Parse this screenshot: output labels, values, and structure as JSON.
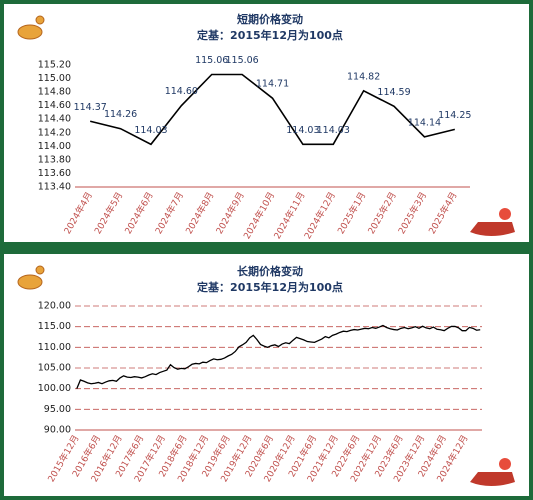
{
  "chart_data": [
    {
      "type": "line",
      "title": "短期价格变动",
      "subtitle": "定基：2015年12月为100点",
      "categories": [
        "2024年4月",
        "2024年5月",
        "2024年6月",
        "2024年7月",
        "2024年8月",
        "2024年9月",
        "2024年10月",
        "2024年11月",
        "2024年12月",
        "2025年1月",
        "2025年2月",
        "2025年3月",
        "2025年4月"
      ],
      "values": [
        114.37,
        114.26,
        114.03,
        114.6,
        115.06,
        115.06,
        114.71,
        114.03,
        114.03,
        114.82,
        114.59,
        114.14,
        114.25
      ],
      "value_labels": [
        "114.37",
        "114.26",
        "114.03",
        "114.60",
        "115.06",
        "115.06",
        "114.71",
        "114.03",
        "114.03",
        "114.82",
        "114.59",
        "114.14",
        "114.25"
      ],
      "color": "#000000",
      "ylim": [
        113.4,
        115.2
      ],
      "yticks": [
        {
          "value": 113.4,
          "label": "113.40"
        },
        {
          "value": 113.6,
          "label": "113.60"
        },
        {
          "value": 113.8,
          "label": "113.80"
        },
        {
          "value": 114,
          "label": "114.00"
        },
        {
          "value": 114.2,
          "label": "114.20"
        },
        {
          "value": 114.4,
          "label": "114.40"
        },
        {
          "value": 114.6,
          "label": "114.60"
        },
        {
          "value": 114.8,
          "label": "114.80"
        },
        {
          "value": 115,
          "label": "115.00"
        },
        {
          "value": 115.2,
          "label": "115.20"
        }
      ],
      "grid": false
    },
    {
      "type": "line",
      "title": "长期价格变动",
      "subtitle": "定基：2015年12月为100点",
      "categories": [
        "2015年12月",
        null,
        null,
        null,
        null,
        null,
        "2016年6月",
        null,
        null,
        null,
        null,
        null,
        "2016年12月",
        null,
        null,
        null,
        null,
        null,
        "2017年6月",
        null,
        null,
        null,
        null,
        null,
        "2017年12月",
        null,
        null,
        null,
        null,
        null,
        "2018年6月",
        null,
        null,
        null,
        null,
        null,
        "2018年12月",
        null,
        null,
        null,
        null,
        null,
        "2019年6月",
        null,
        null,
        null,
        null,
        null,
        "2019年12月",
        null,
        null,
        null,
        null,
        null,
        "2020年6月",
        null,
        null,
        null,
        null,
        null,
        "2020年12月",
        null,
        null,
        null,
        null,
        null,
        "2021年6月",
        null,
        null,
        null,
        null,
        null,
        "2021年12月",
        null,
        null,
        null,
        null,
        null,
        "2022年6月",
        null,
        null,
        null,
        null,
        null,
        "2022年12月",
        null,
        null,
        null,
        null,
        null,
        "2023年6月",
        null,
        null,
        null,
        null,
        null,
        "2023年12月",
        null,
        null,
        null,
        null,
        null,
        "2024年6月",
        null,
        null,
        null,
        null,
        null,
        "2024年12月",
        null,
        null,
        null,
        null
      ],
      "values": [
        100,
        102.1,
        101.8,
        101.4,
        101.2,
        101.3,
        101.5,
        101.2,
        101.6,
        101.9,
        102.0,
        101.8,
        102.6,
        103.1,
        102.8,
        102.7,
        102.9,
        102.8,
        102.6,
        102.9,
        103.3,
        103.6,
        103.4,
        103.9,
        104.2,
        104.5,
        105.8,
        105.1,
        104.7,
        104.9,
        104.8,
        105.3,
        105.9,
        106.1,
        106.0,
        106.4,
        106.3,
        106.8,
        107.2,
        107.0,
        107.1,
        107.4,
        107.9,
        108.3,
        109.0,
        110.1,
        110.6,
        111.2,
        112.3,
        112.9,
        111.9,
        110.7,
        110.3,
        110.0,
        110.4,
        110.6,
        110.2,
        110.8,
        111.1,
        110.9,
        111.7,
        112.4,
        112.1,
        111.8,
        111.4,
        111.3,
        111.2,
        111.6,
        112.0,
        112.6,
        112.3,
        112.9,
        113.2,
        113.6,
        113.9,
        113.8,
        114.1,
        114.3,
        114.2,
        114.4,
        114.6,
        114.5,
        114.8,
        114.6,
        114.9,
        115.3,
        114.8,
        114.5,
        114.3,
        114.2,
        114.6,
        114.8,
        114.5,
        114.7,
        115.0,
        114.6,
        115.1,
        114.7,
        114.5,
        114.9,
        114.37,
        114.26,
        114.03,
        114.6,
        115.06,
        115.06,
        114.71,
        114.03,
        114.03,
        114.82,
        114.59,
        114.14,
        114.25
      ],
      "color": "#000000",
      "ylim": [
        90,
        120
      ],
      "yticks": [
        {
          "value": 90,
          "label": "90.00"
        },
        {
          "value": 95,
          "label": "95.00"
        },
        {
          "value": 100,
          "label": "100.00"
        },
        {
          "value": 105,
          "label": "105.00"
        },
        {
          "value": 110,
          "label": "110.00"
        },
        {
          "value": 115,
          "label": "115.00"
        },
        {
          "value": 120,
          "label": "120.00"
        }
      ],
      "grid": true
    }
  ]
}
